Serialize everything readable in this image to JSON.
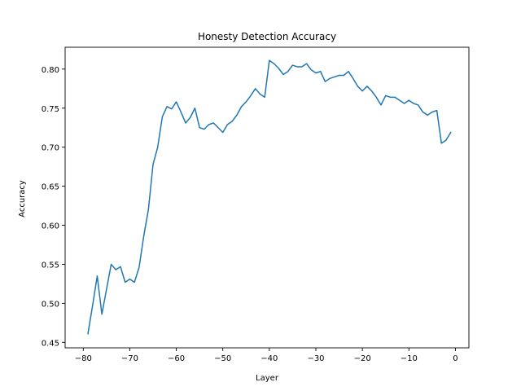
{
  "chart_data": {
    "type": "line",
    "title": "Honesty Detection Accuracy",
    "xlabel": "Layer",
    "ylabel": "Accuracy",
    "xlim": [
      -83.9,
      2.9
    ],
    "ylim": [
      0.443,
      0.828
    ],
    "xticks": [
      -80,
      -70,
      -60,
      -50,
      -40,
      -30,
      -20,
      -10,
      0
    ],
    "yticks": [
      0.45,
      0.5,
      0.55,
      0.6,
      0.65,
      0.7,
      0.75,
      0.8
    ],
    "grid": false,
    "line_color": "#1f77b4",
    "series": [
      {
        "x": [
          -79,
          -78,
          -77,
          -76,
          -75,
          -74,
          -73,
          -72,
          -71,
          -70,
          -69,
          -68,
          -67,
          -66,
          -65,
          -64,
          -63,
          -62,
          -61,
          -60,
          -59,
          -58,
          -57,
          -56,
          -55,
          -54,
          -53,
          -52,
          -51,
          -50,
          -49,
          -48,
          -47,
          -46,
          -45,
          -44,
          -43,
          -42,
          -41,
          -40,
          -39,
          -38,
          -37,
          -36,
          -35,
          -34,
          -33,
          -32,
          -31,
          -30,
          -29,
          -28,
          -27,
          -26,
          -25,
          -24,
          -23,
          -22,
          -21,
          -20,
          -19,
          -18,
          -17,
          -16,
          -15,
          -14,
          -13,
          -12,
          -11,
          -10,
          -9,
          -8,
          -7,
          -6,
          -5,
          -4,
          -3,
          -2,
          -1
        ],
        "values": [
          0.461,
          0.497,
          0.535,
          0.486,
          0.518,
          0.55,
          0.543,
          0.547,
          0.527,
          0.531,
          0.527,
          0.546,
          0.586,
          0.62,
          0.678,
          0.7,
          0.739,
          0.752,
          0.749,
          0.758,
          0.745,
          0.731,
          0.738,
          0.75,
          0.725,
          0.723,
          0.729,
          0.731,
          0.725,
          0.719,
          0.729,
          0.733,
          0.741,
          0.752,
          0.758,
          0.766,
          0.775,
          0.768,
          0.764,
          0.811,
          0.807,
          0.801,
          0.793,
          0.797,
          0.805,
          0.803,
          0.803,
          0.807,
          0.799,
          0.795,
          0.797,
          0.784,
          0.788,
          0.79,
          0.792,
          0.792,
          0.797,
          0.788,
          0.778,
          0.772,
          0.778,
          0.772,
          0.764,
          0.754,
          0.766,
          0.764,
          0.764,
          0.76,
          0.756,
          0.76,
          0.756,
          0.754,
          0.745,
          0.741,
          0.745,
          0.747,
          0.705,
          0.709,
          0.719
        ]
      }
    ]
  }
}
